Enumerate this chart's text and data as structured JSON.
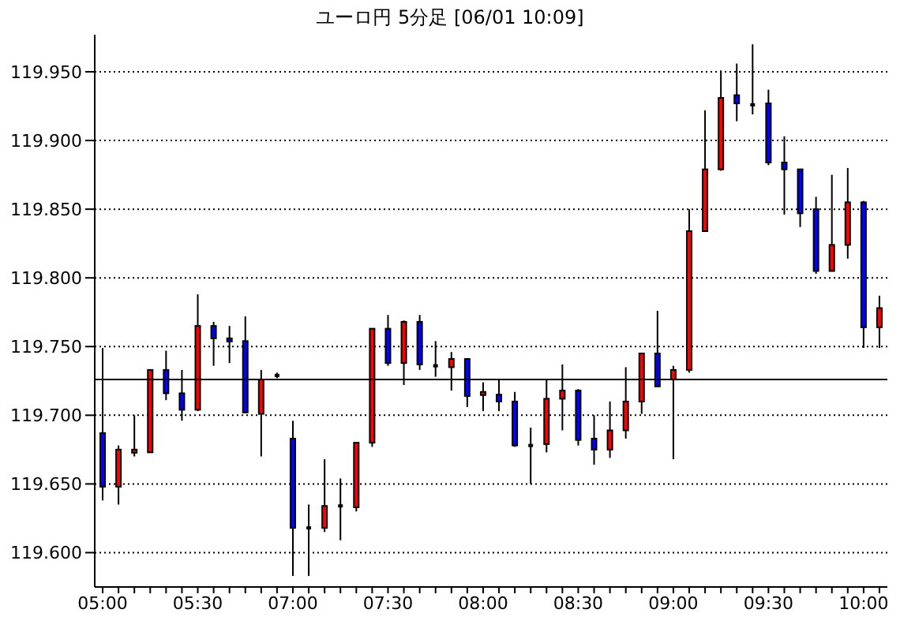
{
  "chart_data": {
    "type": "candlestick",
    "title": "ユーロ円 5分足 [06/01 10:09]",
    "categories": [
      "05:00",
      null,
      null,
      null,
      null,
      null,
      "05:30",
      null,
      null,
      null,
      null,
      null,
      "07:00",
      null,
      null,
      null,
      null,
      null,
      "07:30",
      null,
      null,
      null,
      null,
      null,
      "08:00",
      null,
      null,
      null,
      null,
      null,
      "08:30",
      null,
      null,
      null,
      null,
      null,
      "09:00",
      null,
      null,
      null,
      null,
      null,
      "09:30",
      null,
      null,
      null,
      null,
      null,
      "10:00",
      null
    ],
    "ohlc": [
      [
        119.687,
        119.749,
        119.638,
        119.648
      ],
      [
        119.648,
        119.678,
        119.635,
        119.675
      ],
      [
        119.674,
        119.7,
        119.67,
        119.675
      ],
      [
        119.673,
        119.733,
        119.673,
        119.733
      ],
      [
        119.733,
        119.747,
        119.711,
        119.716
      ],
      [
        119.716,
        119.733,
        119.696,
        119.704
      ],
      [
        119.704,
        119.788,
        119.703,
        119.765
      ],
      [
        119.765,
        119.768,
        119.736,
        119.756
      ],
      [
        119.756,
        119.765,
        119.738,
        119.754
      ],
      [
        119.754,
        119.772,
        119.702,
        119.702
      ],
      [
        119.701,
        119.733,
        119.67,
        119.726
      ],
      [
        119.729,
        119.731,
        119.727,
        119.729
      ],
      [
        119.683,
        119.696,
        119.583,
        119.618
      ],
      [
        119.618,
        119.635,
        119.583,
        119.618
      ],
      [
        119.618,
        119.668,
        119.615,
        119.634
      ],
      [
        119.634,
        119.654,
        119.609,
        119.634
      ],
      [
        119.633,
        119.68,
        119.63,
        119.68
      ],
      [
        119.68,
        119.763,
        119.677,
        119.763
      ],
      [
        119.763,
        119.773,
        119.736,
        119.738
      ],
      [
        119.738,
        119.769,
        119.722,
        119.768
      ],
      [
        119.768,
        119.773,
        119.733,
        119.737
      ],
      [
        119.736,
        119.754,
        119.728,
        119.736
      ],
      [
        119.735,
        119.746,
        119.718,
        119.741
      ],
      [
        119.741,
        119.741,
        119.706,
        119.714
      ],
      [
        119.715,
        119.724,
        119.703,
        119.717
      ],
      [
        119.715,
        119.726,
        119.703,
        119.71
      ],
      [
        119.71,
        119.717,
        119.677,
        119.678
      ],
      [
        119.678,
        119.691,
        119.65,
        119.678
      ],
      [
        119.679,
        119.726,
        119.673,
        119.712
      ],
      [
        119.712,
        119.737,
        119.689,
        119.718
      ],
      [
        119.718,
        119.719,
        119.678,
        119.682
      ],
      [
        119.683,
        119.7,
        119.664,
        119.675
      ],
      [
        119.675,
        119.71,
        119.669,
        119.689
      ],
      [
        119.689,
        119.735,
        119.683,
        119.71
      ],
      [
        119.71,
        119.745,
        119.701,
        119.745
      ],
      [
        119.745,
        119.776,
        119.721,
        119.721
      ],
      [
        119.726,
        119.736,
        119.668,
        119.733
      ],
      [
        119.733,
        119.85,
        119.731,
        119.834
      ],
      [
        119.834,
        119.922,
        119.834,
        119.879
      ],
      [
        119.879,
        119.951,
        119.878,
        119.931
      ],
      [
        119.933,
        119.956,
        119.914,
        119.927
      ],
      [
        119.926,
        119.97,
        119.919,
        119.926
      ],
      [
        119.927,
        119.937,
        119.882,
        119.884
      ],
      [
        119.884,
        119.903,
        119.846,
        119.879
      ],
      [
        119.879,
        119.879,
        119.837,
        119.847
      ],
      [
        119.85,
        119.859,
        119.803,
        119.805
      ],
      [
        119.805,
        119.875,
        119.805,
        119.824
      ],
      [
        119.824,
        119.88,
        119.814,
        119.855
      ],
      [
        119.855,
        119.856,
        119.749,
        119.764
      ],
      [
        119.764,
        119.787,
        119.749,
        119.778
      ]
    ],
    "colors": [
      "#0000ff",
      "#ff0000",
      "#ff0000",
      "#ff0000",
      "#0000ff",
      "#0000ff",
      "#ff0000",
      "#0000ff",
      "#0000ff",
      "#0000ff",
      "#ff0000",
      "#000000",
      "#0000ff",
      "#000000",
      "#ff0000",
      "#000000",
      "#ff0000",
      "#ff0000",
      "#0000ff",
      "#ff0000",
      "#0000ff",
      "#000000",
      "#ff0000",
      "#0000ff",
      "#ff0000",
      "#0000ff",
      "#0000ff",
      "#000000",
      "#ff0000",
      "#ff0000",
      "#0000ff",
      "#0000ff",
      "#ff0000",
      "#ff0000",
      "#ff0000",
      "#0000ff",
      "#ff0000",
      "#ff0000",
      "#ff0000",
      "#ff0000",
      "#0000ff",
      "#000000",
      "#0000ff",
      "#0000ff",
      "#0000ff",
      "#0000ff",
      "#ff0000",
      "#ff0000",
      "#0000ff",
      "#ff0000"
    ],
    "ylim": [
      119.575,
      119.977
    ],
    "yticks": [
      {
        "value": 119.6,
        "label": "119.600"
      },
      {
        "value": 119.65,
        "label": "119.650"
      },
      {
        "value": 119.7,
        "label": "119.700"
      },
      {
        "value": 119.75,
        "label": "119.750"
      },
      {
        "value": 119.8,
        "label": "119.800"
      },
      {
        "value": 119.85,
        "label": "119.850"
      },
      {
        "value": 119.9,
        "label": "119.900"
      },
      {
        "value": 119.95,
        "label": "119.950"
      }
    ],
    "grid": "y",
    "ref_lines": [
      {
        "axis": "y",
        "value": 119.726,
        "color": "#000000"
      }
    ]
  }
}
